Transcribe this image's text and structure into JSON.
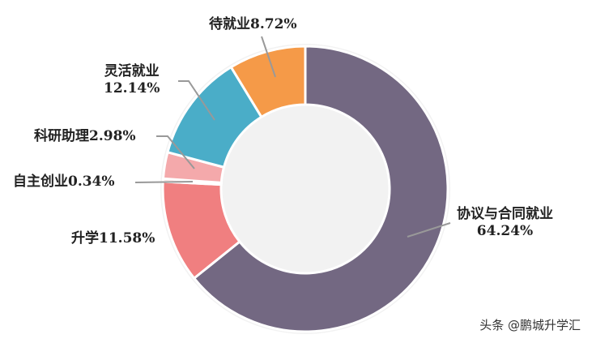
{
  "chart_data": {
    "type": "pie",
    "donut": true,
    "slices": [
      {
        "label": "协议与合同就业",
        "value": 64.24,
        "text": "64.24%",
        "color": "#736882"
      },
      {
        "label": "升学",
        "value": 11.58,
        "text": "11.58%",
        "color": "#F07F80"
      },
      {
        "label": "自主创业",
        "value": 0.34,
        "text": "0.34%",
        "color": "#F8D2D2"
      },
      {
        "label": "科研助理",
        "value": 2.98,
        "text": "2.98%",
        "color": "#F4A9AB"
      },
      {
        "label": "灵活就业",
        "value": 12.14,
        "text": "12.14%",
        "color": "#4AADC8"
      },
      {
        "label": "待就业",
        "value": 8.72,
        "text": "8.72%",
        "color": "#F59A48"
      }
    ],
    "start": "top",
    "direction": "clockwise",
    "legend": "none"
  },
  "watermark": "头条 @鹏城升学汇"
}
